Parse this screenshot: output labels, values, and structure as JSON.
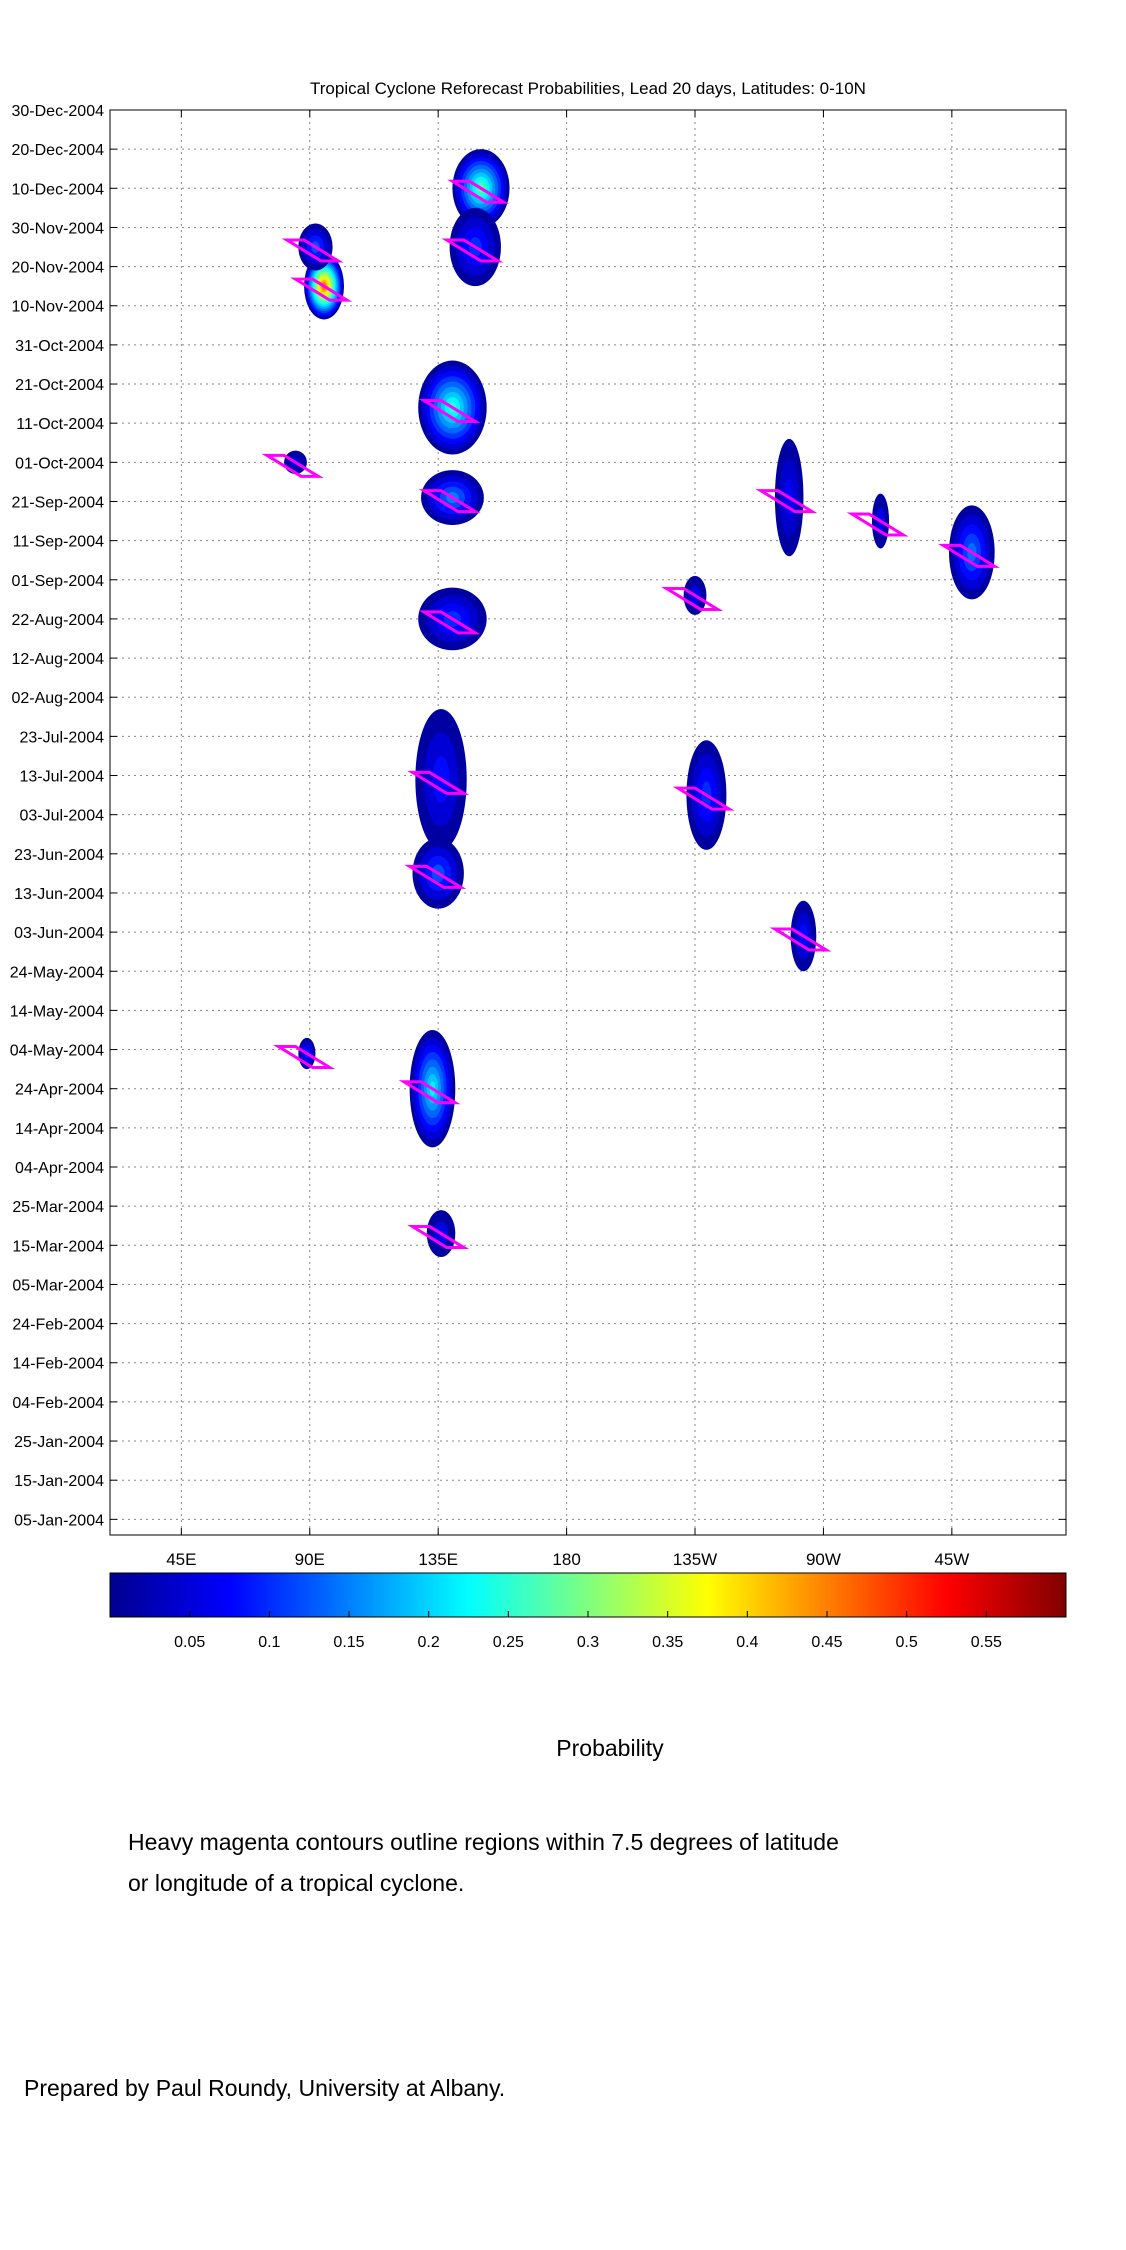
{
  "chart_data": {
    "type": "heatmap",
    "title": "Tropical Cyclone Reforecast Probabilities, Lead 20 days, Latitudes: 0-10N",
    "x_range_deg_east": [
      20,
      355
    ],
    "x_ticks": [
      {
        "lon": 45,
        "label": "45E"
      },
      {
        "lon": 90,
        "label": "90E"
      },
      {
        "lon": 135,
        "label": "135E"
      },
      {
        "lon": 180,
        "label": "180"
      },
      {
        "lon": 225,
        "label": "135W"
      },
      {
        "lon": 270,
        "label": "90W"
      },
      {
        "lon": 315,
        "label": "45W"
      }
    ],
    "y_range_dates": [
      "2004-01-01",
      "2004-12-30"
    ],
    "y_ticks": [
      "30-Dec-2004",
      "20-Dec-2004",
      "10-Dec-2004",
      "30-Nov-2004",
      "20-Nov-2004",
      "10-Nov-2004",
      "31-Oct-2004",
      "21-Oct-2004",
      "11-Oct-2004",
      "01-Oct-2004",
      "21-Sep-2004",
      "11-Sep-2004",
      "01-Sep-2004",
      "22-Aug-2004",
      "12-Aug-2004",
      "02-Aug-2004",
      "23-Jul-2004",
      "13-Jul-2004",
      "03-Jul-2004",
      "23-Jun-2004",
      "13-Jun-2004",
      "03-Jun-2004",
      "24-May-2004",
      "14-May-2004",
      "04-May-2004",
      "24-Apr-2004",
      "14-Apr-2004",
      "04-Apr-2004",
      "25-Mar-2004",
      "15-Mar-2004",
      "05-Mar-2004",
      "24-Feb-2004",
      "14-Feb-2004",
      "04-Feb-2004",
      "25-Jan-2004",
      "15-Jan-2004",
      "05-Jan-2004"
    ],
    "grid": true,
    "colorbar": {
      "label": "Probability",
      "range": [
        0,
        0.6
      ],
      "ticks": [
        "0.05",
        "0.1",
        "0.15",
        "0.2",
        "0.25",
        "0.3",
        "0.35",
        "0.4",
        "0.45",
        "0.5",
        "0.55"
      ],
      "colormap": "jet"
    },
    "probability_regions": [
      {
        "lon": 95,
        "date": "2004-11-15",
        "dlon": 14,
        "days": 17,
        "peak": 0.48
      },
      {
        "lon": 92,
        "date": "2004-11-25",
        "dlon": 12,
        "days": 12,
        "peak": 0.12
      },
      {
        "lon": 150,
        "date": "2004-12-10",
        "dlon": 20,
        "days": 20,
        "peak": 0.28
      },
      {
        "lon": 148,
        "date": "2004-11-25",
        "dlon": 18,
        "days": 20,
        "peak": 0.1
      },
      {
        "lon": 140,
        "date": "2004-10-15",
        "dlon": 24,
        "days": 24,
        "peak": 0.25
      },
      {
        "lon": 140,
        "date": "2004-09-22",
        "dlon": 22,
        "days": 14,
        "peak": 0.15
      },
      {
        "lon": 85,
        "date": "2004-10-01",
        "dlon": 8,
        "days": 6,
        "peak": 0.05
      },
      {
        "lon": 140,
        "date": "2004-08-22",
        "dlon": 24,
        "days": 16,
        "peak": 0.1
      },
      {
        "lon": 136,
        "date": "2004-07-12",
        "dlon": 18,
        "days": 36,
        "peak": 0.08
      },
      {
        "lon": 135,
        "date": "2004-06-18",
        "dlon": 18,
        "days": 18,
        "peak": 0.12
      },
      {
        "lon": 133,
        "date": "2004-04-24",
        "dlon": 16,
        "days": 30,
        "peak": 0.22
      },
      {
        "lon": 136,
        "date": "2004-03-18",
        "dlon": 10,
        "days": 12,
        "peak": 0.06
      },
      {
        "lon": 89,
        "date": "2004-05-03",
        "dlon": 6,
        "days": 8,
        "peak": 0.1
      },
      {
        "lon": 229,
        "date": "2004-07-08",
        "dlon": 14,
        "days": 28,
        "peak": 0.1
      },
      {
        "lon": 263,
        "date": "2004-06-02",
        "dlon": 9,
        "days": 18,
        "peak": 0.08
      },
      {
        "lon": 258,
        "date": "2004-09-22",
        "dlon": 10,
        "days": 30,
        "peak": 0.07
      },
      {
        "lon": 322,
        "date": "2004-09-08",
        "dlon": 16,
        "days": 24,
        "peak": 0.14
      },
      {
        "lon": 290,
        "date": "2004-09-16",
        "dlon": 6,
        "days": 14,
        "peak": 0.06
      },
      {
        "lon": 225,
        "date": "2004-08-28",
        "dlon": 8,
        "days": 10,
        "peak": 0.06
      }
    ]
  },
  "labels": {
    "colorbar_label": "Probability",
    "caption_line1": "Heavy magenta contours outline regions within 7.5 degrees of latitude",
    "caption_line2": "or longitude of a tropical cyclone.",
    "credit": "Prepared by Paul Roundy, University at Albany."
  },
  "colors": {
    "contour": "#ff00ff",
    "grid": "#888888",
    "axis": "#000000"
  }
}
